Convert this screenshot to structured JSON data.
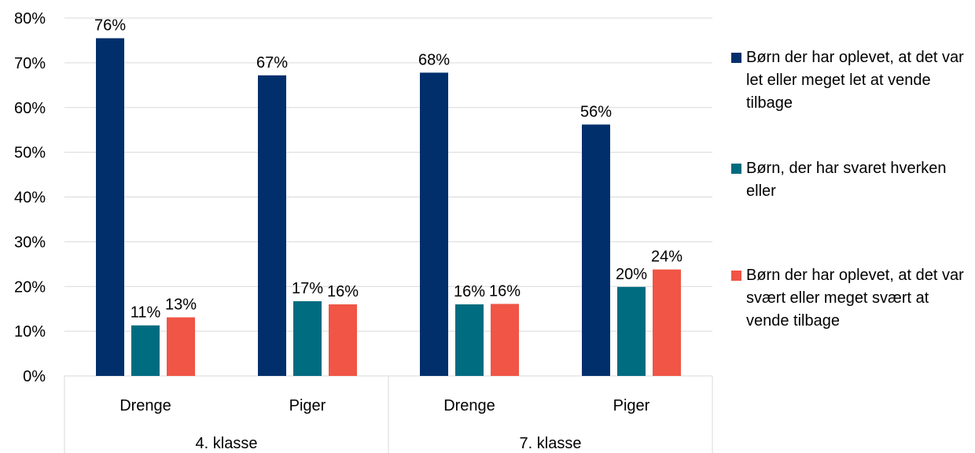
{
  "chart_data": {
    "type": "bar",
    "title": "",
    "xlabel": "",
    "ylabel": "",
    "ylim": [
      0,
      80
    ],
    "y_ticks": [
      "0%",
      "10%",
      "20%",
      "30%",
      "40%",
      "50%",
      "60%",
      "70%",
      "80%"
    ],
    "groups": [
      {
        "label": "4.  klasse",
        "categories": [
          "Drenge",
          "Piger"
        ]
      },
      {
        "label": "7. klasse",
        "categories": [
          "Drenge",
          "Piger"
        ]
      }
    ],
    "series": [
      {
        "name": "Børn der har oplevet, at det var let eller meget let at vende tilbage",
        "color": "#002f6c",
        "values": [
          75.5,
          67.2,
          67.8,
          56.2
        ],
        "labels": [
          "76%",
          "67%",
          "68%",
          "56%"
        ]
      },
      {
        "name": "Børn, der har svaret hverken eller",
        "color": "#006c80",
        "values": [
          11.3,
          16.7,
          16.0,
          19.9
        ],
        "labels": [
          "11%",
          "17%",
          "16%",
          "20%"
        ]
      },
      {
        "name": "Børn der har oplevet, at det var svært eller meget svært at vende tilbage",
        "color": "#f05545",
        "values": [
          13.1,
          16.0,
          16.1,
          23.8
        ],
        "labels": [
          "13%",
          "16%",
          "16%",
          "24%"
        ]
      }
    ],
    "grid": true,
    "legend_position": "right"
  }
}
